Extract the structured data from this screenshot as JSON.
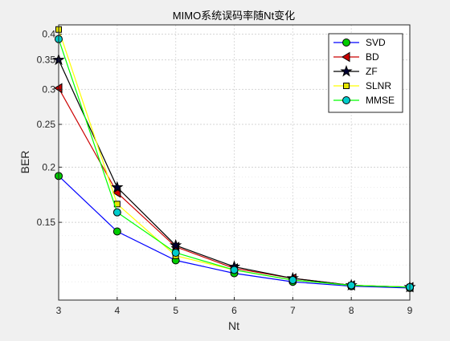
{
  "chart_data": {
    "type": "line",
    "title": "MIMO系统误码率随Nt变化",
    "xlabel": "Nt",
    "ylabel": "BER",
    "xlim": [
      3,
      9
    ],
    "ylim": [
      0.1,
      0.42
    ],
    "yscale": "log",
    "grid": true,
    "legend_position": "top-right",
    "x": [
      3,
      4,
      5,
      6,
      7,
      8,
      9
    ],
    "xticks": [
      "3",
      "4",
      "5",
      "6",
      "7",
      "8",
      "9"
    ],
    "yticks": [
      {
        "value": 0.15,
        "label": "0.15"
      },
      {
        "value": 0.2,
        "label": "0.2"
      },
      {
        "value": 0.25,
        "label": "0.25"
      },
      {
        "value": 0.3,
        "label": "0.3"
      },
      {
        "value": 0.35,
        "label": "0.35"
      },
      {
        "value": 0.4,
        "label": "0.4"
      }
    ],
    "series": [
      {
        "name": "SVD",
        "color": "#0000ff",
        "marker": "circle",
        "marker_fill": "#00cc00",
        "values": [
          0.191,
          0.143,
          0.123,
          0.115,
          0.11,
          0.1075,
          0.1065
        ]
      },
      {
        "name": "BD",
        "color": "#cc0000",
        "marker": "triangle-left",
        "marker_fill": "#cc0000",
        "values": [
          0.302,
          0.175,
          0.132,
          0.118,
          0.112,
          0.108,
          0.107
        ]
      },
      {
        "name": "ZF",
        "color": "#000000",
        "marker": "star",
        "marker_fill": "#000033",
        "values": [
          0.35,
          0.18,
          0.133,
          0.119,
          0.112,
          0.108,
          0.107
        ]
      },
      {
        "name": "SLNR",
        "color": "#ffff00",
        "marker": "square",
        "marker_fill": "#e6e600",
        "values": [
          0.41,
          0.165,
          0.126,
          0.117,
          0.111,
          0.108,
          0.107
        ]
      },
      {
        "name": "MMSE",
        "color": "#00ff00",
        "marker": "circle",
        "marker_fill": "#00cccc",
        "values": [
          0.39,
          0.158,
          0.128,
          0.117,
          0.111,
          0.108,
          0.107
        ]
      }
    ]
  }
}
